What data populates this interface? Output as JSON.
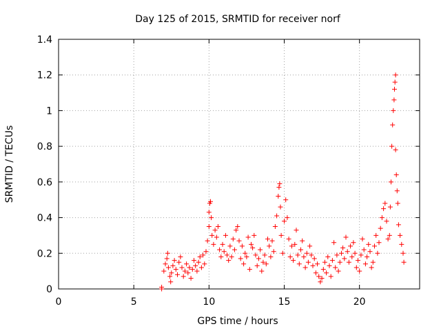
{
  "chart_data": {
    "type": "scatter",
    "title": "Day 125 of 2015, SRMTID for receiver norf",
    "xlabel": "GPS time / hours",
    "ylabel": "SRMTID / TECUs",
    "xlim": [
      0,
      24
    ],
    "ylim": [
      0,
      1.4
    ],
    "xticks": [
      0,
      5,
      10,
      15,
      20
    ],
    "yticks": [
      0,
      0.2,
      0.4,
      0.6,
      0.8,
      1,
      1.2,
      1.4
    ],
    "ytick_labels": [
      "0",
      "0.2",
      "0.4",
      "0.6",
      "0.8",
      "1",
      "1.2",
      "1.4"
    ],
    "xtick_labels": [
      "0",
      "5",
      "10",
      "15",
      "20"
    ],
    "grid": true,
    "marker": "+",
    "color": "#ff0000",
    "series": [
      {
        "name": "SRMTID",
        "points": [
          [
            6.85,
            0.0
          ],
          [
            6.85,
            0.01
          ],
          [
            7.0,
            0.1
          ],
          [
            7.1,
            0.14
          ],
          [
            7.2,
            0.17
          ],
          [
            7.25,
            0.2
          ],
          [
            7.3,
            0.12
          ],
          [
            7.4,
            0.07
          ],
          [
            7.45,
            0.04
          ],
          [
            7.5,
            0.09
          ],
          [
            7.6,
            0.13
          ],
          [
            7.7,
            0.16
          ],
          [
            7.8,
            0.11
          ],
          [
            7.9,
            0.08
          ],
          [
            8.0,
            0.15
          ],
          [
            8.1,
            0.18
          ],
          [
            8.2,
            0.12
          ],
          [
            8.3,
            0.07
          ],
          [
            8.4,
            0.1
          ],
          [
            8.5,
            0.14
          ],
          [
            8.6,
            0.09
          ],
          [
            8.7,
            0.12
          ],
          [
            8.8,
            0.06
          ],
          [
            8.9,
            0.11
          ],
          [
            9.0,
            0.16
          ],
          [
            9.1,
            0.13
          ],
          [
            9.2,
            0.1
          ],
          [
            9.3,
            0.15
          ],
          [
            9.4,
            0.18
          ],
          [
            9.5,
            0.12
          ],
          [
            9.6,
            0.19
          ],
          [
            9.7,
            0.14
          ],
          [
            9.8,
            0.21
          ],
          [
            9.9,
            0.27
          ],
          [
            10.0,
            0.35
          ],
          [
            10.0,
            0.43
          ],
          [
            10.05,
            0.48
          ],
          [
            10.1,
            0.49
          ],
          [
            10.15,
            0.4
          ],
          [
            10.2,
            0.3
          ],
          [
            10.3,
            0.25
          ],
          [
            10.4,
            0.33
          ],
          [
            10.5,
            0.29
          ],
          [
            10.6,
            0.35
          ],
          [
            10.7,
            0.22
          ],
          [
            10.8,
            0.18
          ],
          [
            10.9,
            0.25
          ],
          [
            11.0,
            0.21
          ],
          [
            11.1,
            0.3
          ],
          [
            11.2,
            0.19
          ],
          [
            11.3,
            0.16
          ],
          [
            11.4,
            0.24
          ],
          [
            11.5,
            0.18
          ],
          [
            11.6,
            0.28
          ],
          [
            11.7,
            0.22
          ],
          [
            11.8,
            0.33
          ],
          [
            11.9,
            0.35
          ],
          [
            12.0,
            0.27
          ],
          [
            12.1,
            0.17
          ],
          [
            12.2,
            0.24
          ],
          [
            12.3,
            0.14
          ],
          [
            12.4,
            0.2
          ],
          [
            12.5,
            0.18
          ],
          [
            12.6,
            0.29
          ],
          [
            12.7,
            0.11
          ],
          [
            12.8,
            0.25
          ],
          [
            12.9,
            0.23
          ],
          [
            13.0,
            0.3
          ],
          [
            13.1,
            0.19
          ],
          [
            13.2,
            0.13
          ],
          [
            13.3,
            0.17
          ],
          [
            13.4,
            0.22
          ],
          [
            13.5,
            0.1
          ],
          [
            13.6,
            0.15
          ],
          [
            13.7,
            0.19
          ],
          [
            13.8,
            0.14
          ],
          [
            13.9,
            0.28
          ],
          [
            14.0,
            0.24
          ],
          [
            14.1,
            0.18
          ],
          [
            14.2,
            0.27
          ],
          [
            14.3,
            0.21
          ],
          [
            14.4,
            0.35
          ],
          [
            14.5,
            0.41
          ],
          [
            14.6,
            0.52
          ],
          [
            14.65,
            0.57
          ],
          [
            14.7,
            0.59
          ],
          [
            14.75,
            0.46
          ],
          [
            14.8,
            0.3
          ],
          [
            14.9,
            0.2
          ],
          [
            15.0,
            0.38
          ],
          [
            15.1,
            0.5
          ],
          [
            15.2,
            0.4
          ],
          [
            15.3,
            0.28
          ],
          [
            15.4,
            0.18
          ],
          [
            15.5,
            0.24
          ],
          [
            15.6,
            0.16
          ],
          [
            15.7,
            0.25
          ],
          [
            15.8,
            0.33
          ],
          [
            15.9,
            0.19
          ],
          [
            16.0,
            0.14
          ],
          [
            16.1,
            0.22
          ],
          [
            16.2,
            0.27
          ],
          [
            16.3,
            0.18
          ],
          [
            16.4,
            0.12
          ],
          [
            16.5,
            0.2
          ],
          [
            16.6,
            0.15
          ],
          [
            16.7,
            0.24
          ],
          [
            16.8,
            0.19
          ],
          [
            16.9,
            0.13
          ],
          [
            17.0,
            0.17
          ],
          [
            17.1,
            0.09
          ],
          [
            17.2,
            0.14
          ],
          [
            17.3,
            0.07
          ],
          [
            17.4,
            0.04
          ],
          [
            17.5,
            0.06
          ],
          [
            17.6,
            0.11
          ],
          [
            17.7,
            0.15
          ],
          [
            17.8,
            0.09
          ],
          [
            17.9,
            0.18
          ],
          [
            18.0,
            0.13
          ],
          [
            18.1,
            0.07
          ],
          [
            18.2,
            0.16
          ],
          [
            18.3,
            0.26
          ],
          [
            18.4,
            0.12
          ],
          [
            18.5,
            0.19
          ],
          [
            18.6,
            0.1
          ],
          [
            18.7,
            0.15
          ],
          [
            18.8,
            0.2
          ],
          [
            18.9,
            0.23
          ],
          [
            19.0,
            0.17
          ],
          [
            19.1,
            0.29
          ],
          [
            19.2,
            0.21
          ],
          [
            19.3,
            0.15
          ],
          [
            19.4,
            0.24
          ],
          [
            19.5,
            0.18
          ],
          [
            19.6,
            0.26
          ],
          [
            19.7,
            0.2
          ],
          [
            19.8,
            0.12
          ],
          [
            19.9,
            0.16
          ],
          [
            20.0,
            0.1
          ],
          [
            20.1,
            0.19
          ],
          [
            20.2,
            0.28
          ],
          [
            20.3,
            0.22
          ],
          [
            20.4,
            0.14
          ],
          [
            20.5,
            0.18
          ],
          [
            20.6,
            0.25
          ],
          [
            20.7,
            0.21
          ],
          [
            20.8,
            0.12
          ],
          [
            20.9,
            0.15
          ],
          [
            21.0,
            0.24
          ],
          [
            21.1,
            0.3
          ],
          [
            21.2,
            0.2
          ],
          [
            21.3,
            0.26
          ],
          [
            21.4,
            0.34
          ],
          [
            21.5,
            0.4
          ],
          [
            21.6,
            0.45
          ],
          [
            21.7,
            0.48
          ],
          [
            21.8,
            0.38
          ],
          [
            21.9,
            0.28
          ],
          [
            22.0,
            0.3
          ],
          [
            22.05,
            0.46
          ],
          [
            22.1,
            0.6
          ],
          [
            22.15,
            0.8
          ],
          [
            22.2,
            0.92
          ],
          [
            22.25,
            1.0
          ],
          [
            22.3,
            1.06
          ],
          [
            22.33,
            1.12
          ],
          [
            22.36,
            1.16
          ],
          [
            22.4,
            1.2
          ],
          [
            22.4,
            0.78
          ],
          [
            22.45,
            0.64
          ],
          [
            22.5,
            0.55
          ],
          [
            22.55,
            0.48
          ],
          [
            22.6,
            0.36
          ],
          [
            22.7,
            0.3
          ],
          [
            22.8,
            0.25
          ],
          [
            22.9,
            0.2
          ],
          [
            22.95,
            0.15
          ]
        ]
      }
    ]
  }
}
